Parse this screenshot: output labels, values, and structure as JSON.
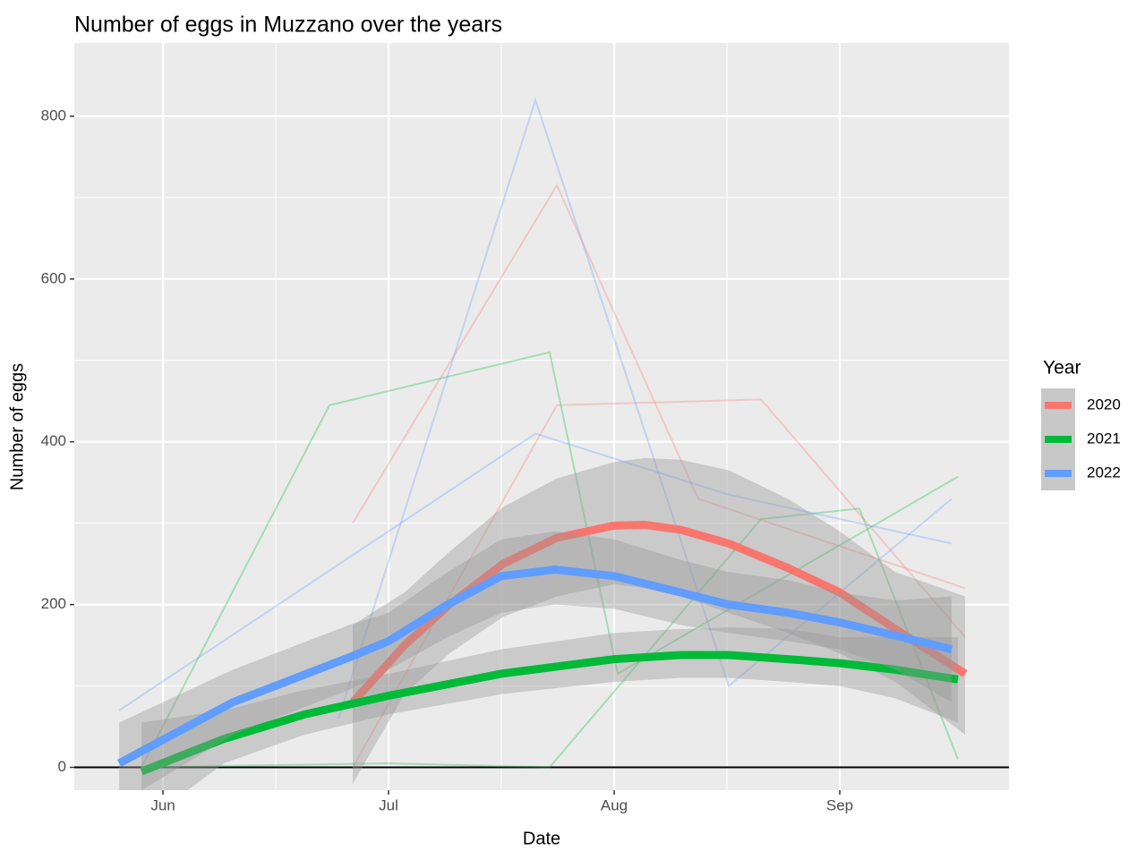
{
  "chart_data": {
    "type": "line",
    "title": "Number of eggs in Muzzano over the years",
    "x_label": "Date",
    "y_label": "Number of eggs",
    "legend_title": "Year",
    "legend_position": "right",
    "grid": true,
    "hline": 0,
    "xlim": [
      5.607,
      9.75
    ],
    "ylim": [
      -28,
      890
    ],
    "xticks": [
      {
        "value": 6,
        "label": "Jun"
      },
      {
        "value": 7,
        "label": "Jul"
      },
      {
        "value": 8,
        "label": "Aug"
      },
      {
        "value": 9,
        "label": "Sep"
      }
    ],
    "xminor": [
      6.5,
      7.5,
      8.5
    ],
    "yticks": [
      0,
      200,
      400,
      600,
      800
    ],
    "yminor": [
      100,
      300,
      500,
      700
    ],
    "series": [
      {
        "name": "2020",
        "color": "#F8766D",
        "x": [
          6.841,
          7.071,
          7.27,
          7.508,
          7.746,
          8.0,
          8.135,
          8.294,
          8.508,
          8.77,
          9.0,
          9.246,
          9.556
        ],
        "values": [
          80,
          150,
          200,
          250,
          282,
          297,
          298,
          292,
          275,
          245,
          215,
          170,
          115
        ],
        "lower": [
          -20,
          90,
          140,
          185,
          210,
          225,
          220,
          210,
          190,
          165,
          140,
          105,
          40
        ],
        "upper": [
          175,
          215,
          265,
          320,
          355,
          375,
          380,
          378,
          365,
          330,
          290,
          240,
          210
        ],
        "raw": [
          {
            "x": [
              6.841,
              7.746,
              8.373,
              9.556
            ],
            "values": [
              300,
              715,
              330,
              220
            ]
          },
          {
            "x": [
              6.841,
              7.746,
              8.651,
              9.556
            ],
            "values": [
              0,
              445,
              452,
              160
            ]
          }
        ]
      },
      {
        "name": "2021",
        "color": "#00BA38",
        "x": [
          5.905,
          6.27,
          6.627,
          7.0,
          7.5,
          8.0,
          8.294,
          8.508,
          8.77,
          9.0,
          9.246,
          9.524
        ],
        "values": [
          -5,
          35,
          65,
          88,
          115,
          133,
          138,
          138,
          133,
          128,
          120,
          108
        ],
        "lower": [
          -70,
          5,
          40,
          65,
          90,
          105,
          110,
          110,
          105,
          100,
          85,
          55
        ],
        "upper": [
          55,
          70,
          95,
          115,
          145,
          165,
          170,
          172,
          170,
          160,
          160,
          160
        ],
        "raw": [
          {
            "x": [
              5.905,
              6.738,
              7.714,
              8.016,
              9.524
            ],
            "values": [
              0,
              445,
              510,
              115,
              357
            ]
          },
          {
            "x": [
              5.905,
              7.0,
              7.714,
              8.651,
              9.087,
              9.524
            ],
            "values": [
              0,
              5,
              0,
              305,
              318,
              10
            ]
          }
        ]
      },
      {
        "name": "2022",
        "color": "#619CFF",
        "x": [
          5.806,
          6.31,
          6.825,
          7.0,
          7.262,
          7.5,
          7.738,
          8.0,
          8.294,
          8.508,
          8.77,
          9.0,
          9.246,
          9.496
        ],
        "values": [
          5,
          80,
          135,
          155,
          200,
          235,
          243,
          235,
          215,
          200,
          190,
          178,
          162,
          145
        ],
        "lower": [
          -45,
          40,
          95,
          120,
          160,
          190,
          200,
          195,
          175,
          165,
          155,
          145,
          120,
          80
        ],
        "upper": [
          55,
          120,
          175,
          190,
          240,
          280,
          290,
          280,
          255,
          240,
          230,
          215,
          205,
          210
        ],
        "raw": [
          {
            "x": [
              6.778,
              7.651,
              8.508,
              9.496
            ],
            "values": [
              60,
              820,
              100,
              330
            ]
          },
          {
            "x": [
              5.806,
              7.651,
              8.508,
              9.496
            ],
            "values": [
              70,
              410,
              335,
              275
            ]
          }
        ]
      }
    ]
  }
}
